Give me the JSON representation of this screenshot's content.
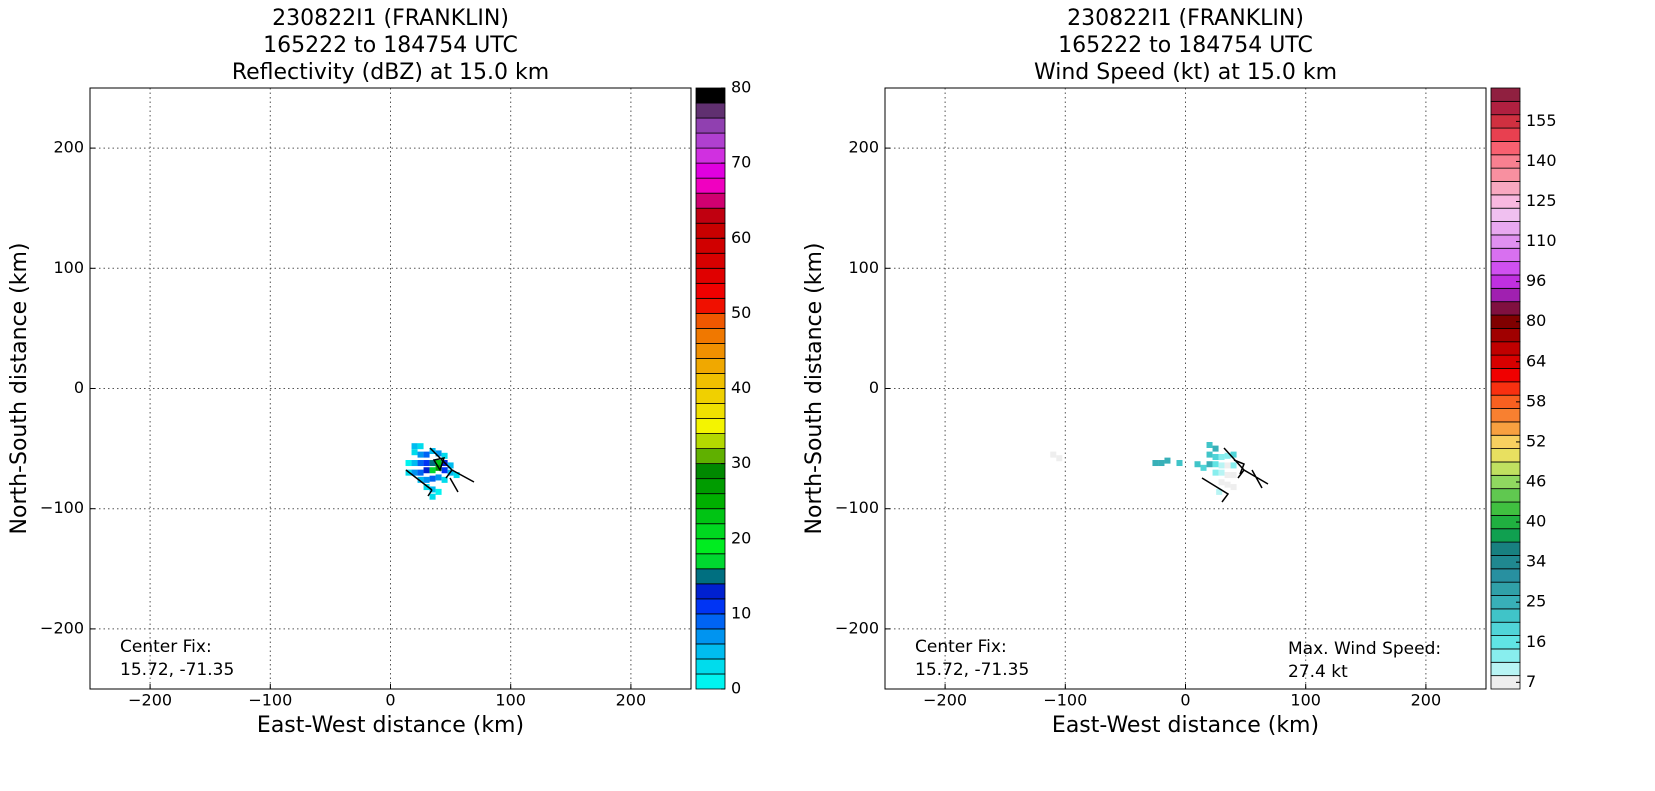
{
  "chart_data": [
    {
      "type": "radar",
      "title": [
        "230822I1 (FRANKLIN)",
        "165222 to 184754 UTC",
        "Reflectivity (dBZ) at 15.0 km"
      ],
      "xlabel": "East-West distance (km)",
      "ylabel": "North-South distance (km)",
      "xlim": [
        -250,
        250
      ],
      "ylim": [
        -250,
        250
      ],
      "xticks": [
        {
          "value": -200,
          "label": "−200"
        },
        {
          "value": -100,
          "label": "−100"
        },
        0,
        100,
        200
      ],
      "yticks": [
        {
          "value": -200,
          "label": "−200"
        },
        {
          "value": -100,
          "label": "−100"
        },
        0,
        100,
        200
      ],
      "grid": true,
      "annotations": [
        "Center Fix:",
        "15.72, -71.35"
      ],
      "x": [
        20,
        25,
        20,
        25,
        30,
        35,
        40,
        45,
        15,
        20,
        25,
        30,
        35,
        40,
        45,
        50,
        15,
        20,
        25,
        30,
        35,
        40,
        45,
        50,
        25,
        30,
        35,
        40,
        45,
        30,
        35,
        40,
        35,
        55
      ],
      "y": [
        -48,
        -48,
        -53,
        -55,
        -55,
        -52,
        -54,
        -56,
        -62,
        -62,
        -62,
        -62,
        -62,
        -62,
        -62,
        -64,
        -70,
        -70,
        -70,
        -68,
        -68,
        -66,
        -68,
        -70,
        -76,
        -76,
        -75,
        -74,
        -76,
        -82,
        -84,
        -86,
        -90,
        -72
      ],
      "values": [
        5,
        3,
        2,
        6,
        8,
        4,
        7,
        3,
        1,
        4,
        9,
        11,
        14,
        22,
        12,
        5,
        3,
        6,
        8,
        12,
        16,
        26,
        10,
        4,
        5,
        7,
        9,
        6,
        3,
        2,
        4,
        1,
        2,
        3
      ],
      "colorbar": {
        "scale": "linear",
        "clim": [
          0,
          80
        ],
        "ticks": [
          0,
          10,
          20,
          30,
          40,
          50,
          60,
          70,
          80
        ],
        "colors": [
          "#00f4f0",
          "#00dcec",
          "#00bcf0",
          "#0094f0",
          "#0064f4",
          "#0034f4",
          "#0020d0",
          "#006f80",
          "#00d830",
          "#00ec20",
          "#00d820",
          "#00c414",
          "#00b000",
          "#009c00",
          "#008800",
          "#60b000",
          "#b4d800",
          "#f4f400",
          "#f0e000",
          "#f0d000",
          "#f0c000",
          "#f0a800",
          "#f09000",
          "#f07800",
          "#f05800",
          "#f01000",
          "#f00000",
          "#e00000",
          "#d80000",
          "#d00000",
          "#c80000",
          "#c00010",
          "#d00070",
          "#f000c0",
          "#e000e0",
          "#d030e0",
          "#b040d0",
          "#9040b0",
          "#603070",
          "#000000"
        ]
      }
    },
    {
      "type": "radar",
      "title": [
        "230822I1 (FRANKLIN)",
        "165222 to 184754 UTC",
        "Wind Speed (kt) at 15.0 km"
      ],
      "xlabel": "East-West distance (km)",
      "ylabel": "North-South distance (km)",
      "xlim": [
        -250,
        250
      ],
      "ylim": [
        -250,
        250
      ],
      "xticks": [
        {
          "value": -200,
          "label": "−200"
        },
        {
          "value": -100,
          "label": "−100"
        },
        0,
        100,
        200
      ],
      "yticks": [
        {
          "value": -200,
          "label": "−200"
        },
        {
          "value": -100,
          "label": "−100"
        },
        0,
        100,
        200
      ],
      "grid": true,
      "annotations": [
        "Center Fix:",
        "15.72, -71.35",
        "Max. Wind Speed:",
        "27.4 kt"
      ],
      "x": [
        20,
        25,
        20,
        25,
        30,
        35,
        40,
        20,
        25,
        30,
        35,
        40,
        15,
        25,
        30,
        35,
        40,
        30,
        35,
        40,
        28,
        -25,
        -20,
        -15,
        -5,
        -110,
        -105,
        10
      ],
      "y": [
        -47,
        -50,
        -55,
        -57,
        -57,
        -56,
        -55,
        -63,
        -63,
        -64,
        -64,
        -64,
        -66,
        -70,
        -70,
        -72,
        -72,
        -78,
        -80,
        -82,
        -86,
        -62,
        -62,
        -60,
        -62,
        -55,
        -58,
        -63
      ],
      "values": [
        22,
        25,
        23,
        18,
        14,
        12,
        20,
        24,
        17,
        10,
        8,
        12,
        20,
        13,
        9,
        6,
        8,
        5,
        4,
        7,
        11,
        24,
        24,
        24,
        22,
        5,
        5,
        23
      ],
      "colorbar": {
        "scale": "index",
        "ticks": [
          7,
          16,
          25,
          34,
          40,
          46,
          52,
          58,
          64,
          80,
          96,
          110,
          125,
          140,
          155
        ],
        "colors": [
          "#eeeeee",
          "#b8f4f4",
          "#88eeee",
          "#60e4e4",
          "#50d4d8",
          "#40c4c8",
          "#38b0b8",
          "#30a0a8",
          "#2890a0",
          "#208890",
          "#188080",
          "#10a050",
          "#20b040",
          "#40c040",
          "#60c850",
          "#90d860",
          "#c0e060",
          "#e8e060",
          "#f8d060",
          "#f8a040",
          "#f88030",
          "#f86020",
          "#f83010",
          "#f00000",
          "#d80000",
          "#c00000",
          "#a00000",
          "#800000",
          "#801040",
          "#a020b0",
          "#c030e0",
          "#d050f0",
          "#d870f0",
          "#e090f0",
          "#e8a8f0",
          "#f0c0f0",
          "#f8b8e0",
          "#f8a8c0",
          "#f890a0",
          "#f88090",
          "#f86070",
          "#e84050",
          "#d03040",
          "#b02040",
          "#902040"
        ]
      }
    }
  ]
}
